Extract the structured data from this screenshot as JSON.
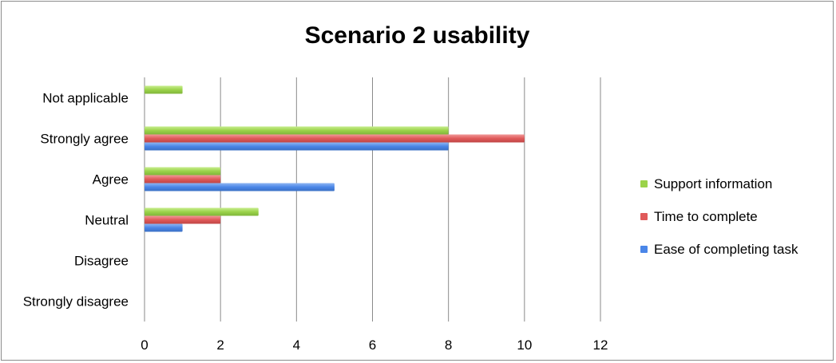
{
  "chart_data": {
    "type": "bar",
    "orientation": "horizontal",
    "title": "Scenario 2 usability",
    "categories": [
      "Strongly disagree",
      "Disagree",
      "Neutral",
      "Agree",
      "Strongly agree",
      "Not applicable"
    ],
    "series": [
      {
        "name": "Ease of completing task",
        "color": "#4a86e8",
        "values": [
          0,
          0,
          1,
          5,
          8,
          0
        ]
      },
      {
        "name": "Time to complete",
        "color": "#e05a5a",
        "values": [
          0,
          0,
          2,
          2,
          10,
          0
        ]
      },
      {
        "name": "Support information",
        "color": "#9bd34a",
        "values": [
          0,
          0,
          3,
          2,
          8,
          1
        ]
      }
    ],
    "xlim": [
      0,
      12
    ],
    "xticks": [
      0,
      2,
      4,
      6,
      8,
      10,
      12
    ],
    "grid": true,
    "legend_position": "right"
  }
}
